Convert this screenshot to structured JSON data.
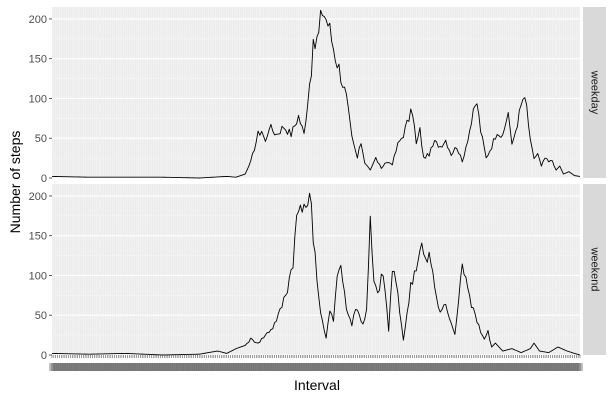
{
  "chart_data": {
    "type": "line",
    "xlabel": "Interval",
    "ylabel": "Number of steps",
    "ylim": [
      0,
      215
    ],
    "yticks": [
      0,
      50,
      100,
      150,
      200
    ],
    "x_points": 288,
    "facet_strip_position": "right",
    "grid": true,
    "background": "#ebebeb",
    "strip_color": "#d9d9d9",
    "line_color": "#000000",
    "panels": [
      {
        "label": "weekday",
        "anchors": [
          [
            0,
            2
          ],
          [
            20,
            1
          ],
          [
            40,
            1
          ],
          [
            60,
            1
          ],
          [
            80,
            0
          ],
          [
            95,
            2
          ],
          [
            100,
            1
          ],
          [
            105,
            5
          ],
          [
            108,
            20
          ],
          [
            112,
            55
          ],
          [
            114,
            60
          ],
          [
            116,
            45
          ],
          [
            118,
            65
          ],
          [
            122,
            55
          ],
          [
            126,
            65
          ],
          [
            130,
            55
          ],
          [
            134,
            78
          ],
          [
            137,
            55
          ],
          [
            140,
            120
          ],
          [
            142,
            160
          ],
          [
            145,
            180
          ],
          [
            147,
            213
          ],
          [
            150,
            195
          ],
          [
            152,
            175
          ],
          [
            154,
            155
          ],
          [
            157,
            130
          ],
          [
            160,
            100
          ],
          [
            163,
            50
          ],
          [
            166,
            25
          ],
          [
            168,
            45
          ],
          [
            170,
            20
          ],
          [
            173,
            10
          ],
          [
            176,
            25
          ],
          [
            179,
            12
          ],
          [
            182,
            20
          ],
          [
            185,
            18
          ],
          [
            188,
            42
          ],
          [
            191,
            55
          ],
          [
            194,
            75
          ],
          [
            196,
            85
          ],
          [
            198,
            42
          ],
          [
            200,
            60
          ],
          [
            202,
            25
          ],
          [
            205,
            30
          ],
          [
            208,
            45
          ],
          [
            211,
            40
          ],
          [
            214,
            48
          ],
          [
            217,
            30
          ],
          [
            220,
            40
          ],
          [
            223,
            20
          ],
          [
            226,
            50
          ],
          [
            229,
            80
          ],
          [
            231,
            95
          ],
          [
            233,
            60
          ],
          [
            236,
            25
          ],
          [
            239,
            40
          ],
          [
            242,
            60
          ],
          [
            245,
            50
          ],
          [
            248,
            85
          ],
          [
            250,
            40
          ],
          [
            252,
            60
          ],
          [
            254,
            80
          ],
          [
            256,
            100
          ],
          [
            258,
            90
          ],
          [
            260,
            45
          ],
          [
            262,
            25
          ],
          [
            264,
            30
          ],
          [
            266,
            15
          ],
          [
            268,
            25
          ],
          [
            270,
            20
          ],
          [
            272,
            22
          ],
          [
            274,
            10
          ],
          [
            276,
            15
          ],
          [
            278,
            5
          ],
          [
            281,
            8
          ],
          [
            284,
            3
          ],
          [
            287,
            2
          ]
        ]
      },
      {
        "label": "weekend",
        "anchors": [
          [
            0,
            2
          ],
          [
            20,
            1
          ],
          [
            40,
            2
          ],
          [
            60,
            0
          ],
          [
            80,
            1
          ],
          [
            90,
            5
          ],
          [
            95,
            2
          ],
          [
            100,
            8
          ],
          [
            105,
            12
          ],
          [
            108,
            20
          ],
          [
            112,
            15
          ],
          [
            116,
            25
          ],
          [
            120,
            35
          ],
          [
            124,
            55
          ],
          [
            128,
            85
          ],
          [
            131,
            120
          ],
          [
            133,
            170
          ],
          [
            135,
            190
          ],
          [
            137,
            175
          ],
          [
            139,
            205
          ],
          [
            141,
            180
          ],
          [
            143,
            130
          ],
          [
            145,
            70
          ],
          [
            147,
            40
          ],
          [
            149,
            20
          ],
          [
            151,
            60
          ],
          [
            153,
            45
          ],
          [
            155,
            100
          ],
          [
            157,
            115
          ],
          [
            159,
            75
          ],
          [
            161,
            50
          ],
          [
            163,
            40
          ],
          [
            165,
            60
          ],
          [
            167,
            50
          ],
          [
            169,
            40
          ],
          [
            171,
            55
          ],
          [
            173,
            165
          ],
          [
            175,
            90
          ],
          [
            177,
            75
          ],
          [
            179,
            100
          ],
          [
            181,
            85
          ],
          [
            183,
            30
          ],
          [
            185,
            110
          ],
          [
            187,
            90
          ],
          [
            189,
            55
          ],
          [
            191,
            20
          ],
          [
            193,
            50
          ],
          [
            195,
            90
          ],
          [
            197,
            105
          ],
          [
            199,
            120
          ],
          [
            201,
            138
          ],
          [
            203,
            115
          ],
          [
            205,
            125
          ],
          [
            207,
            100
          ],
          [
            209,
            75
          ],
          [
            211,
            50
          ],
          [
            213,
            65
          ],
          [
            215,
            55
          ],
          [
            217,
            40
          ],
          [
            219,
            25
          ],
          [
            221,
            70
          ],
          [
            223,
            110
          ],
          [
            225,
            105
          ],
          [
            227,
            75
          ],
          [
            229,
            55
          ],
          [
            231,
            45
          ],
          [
            233,
            30
          ],
          [
            235,
            20
          ],
          [
            237,
            30
          ],
          [
            239,
            10
          ],
          [
            241,
            15
          ],
          [
            243,
            10
          ],
          [
            245,
            5
          ],
          [
            250,
            8
          ],
          [
            255,
            3
          ],
          [
            260,
            8
          ],
          [
            262,
            15
          ],
          [
            265,
            5
          ],
          [
            270,
            3
          ],
          [
            275,
            10
          ],
          [
            280,
            5
          ],
          [
            284,
            2
          ],
          [
            287,
            0
          ]
        ]
      }
    ],
    "colors": {
      "panel_bg": "#ebebeb",
      "grid_major": "#ffffff",
      "grid_minor": "#f5f5f5",
      "strip_bg": "#d9d9d9",
      "tick_text": "#4d4d4d",
      "axis_title": "#000000"
    }
  }
}
